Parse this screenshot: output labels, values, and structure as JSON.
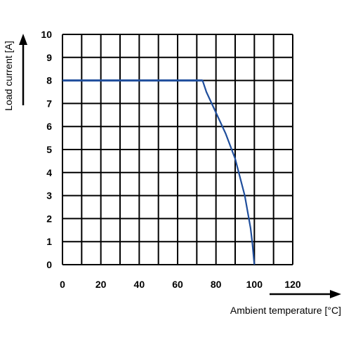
{
  "chart_data": {
    "type": "line",
    "title": "",
    "xlabel": "Ambient temperature [°C]",
    "ylabel": "Load current [A]",
    "xlim": [
      0,
      120
    ],
    "ylim": [
      0,
      10
    ],
    "x_ticks": [
      "0",
      "20",
      "40",
      "60",
      "80",
      "100",
      "120"
    ],
    "y_ticks": [
      "0",
      "1",
      "2",
      "3",
      "4",
      "5",
      "6",
      "7",
      "8",
      "9",
      "10"
    ],
    "grid": true,
    "series": [
      {
        "color": "#1f4e9c",
        "points": [
          [
            0,
            8.0
          ],
          [
            73,
            8.0
          ],
          [
            75,
            7.5
          ],
          [
            80,
            6.6
          ],
          [
            85,
            5.7
          ],
          [
            90,
            4.6
          ],
          [
            95,
            3.0
          ],
          [
            98,
            1.6
          ],
          [
            99,
            0.9
          ],
          [
            100,
            0.0
          ]
        ]
      }
    ]
  }
}
